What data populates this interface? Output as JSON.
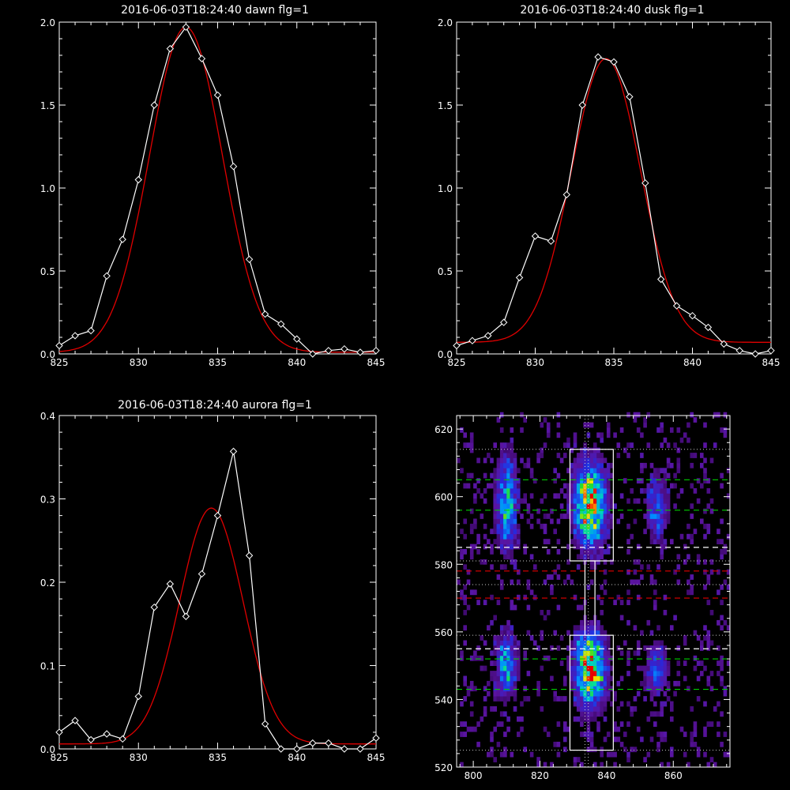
{
  "colors": {
    "background": "#000000",
    "data_line": "#ffffff",
    "fit_line": "#e00000",
    "dashed_green": "#00cc00",
    "dashed_red": "#e00000",
    "dashed_white": "#ffffff"
  },
  "chart_data": [
    {
      "type": "line",
      "title": "2016-06-03T18:24:40 dawn flg=1",
      "xlim": [
        825,
        845
      ],
      "ylim": [
        0,
        2.0
      ],
      "xticks": [
        "825",
        "830",
        "835",
        "840",
        "845"
      ],
      "yticks": [
        "0.0",
        "0.5",
        "1.0",
        "1.5",
        "2.0"
      ],
      "series": [
        {
          "role": "data",
          "x": [
            825,
            826,
            827,
            828,
            829,
            830,
            831,
            832,
            833,
            834,
            835,
            836,
            837,
            838,
            839,
            840,
            841,
            842,
            843,
            844,
            845
          ],
          "y": [
            0.05,
            0.11,
            0.14,
            0.47,
            0.69,
            1.05,
            1.5,
            1.84,
            1.97,
            1.78,
            1.56,
            1.13,
            0.57,
            0.24,
            0.18,
            0.09,
            0.0,
            0.02,
            0.03,
            0.01,
            0.02
          ]
        },
        {
          "role": "fit",
          "gaussian": {
            "amp": 1.96,
            "center": 833.0,
            "sigma": 2.3,
            "offset": 0.01
          }
        }
      ]
    },
    {
      "type": "line",
      "title": "2016-06-03T18:24:40 dusk flg=1",
      "xlim": [
        825,
        845
      ],
      "ylim": [
        0,
        2.0
      ],
      "xticks": [
        "825",
        "830",
        "835",
        "840",
        "845"
      ],
      "yticks": [
        "0.0",
        "0.5",
        "1.0",
        "1.5",
        "2.0"
      ],
      "series": [
        {
          "role": "data",
          "x": [
            825,
            826,
            827,
            828,
            829,
            830,
            831,
            832,
            833,
            834,
            835,
            836,
            837,
            838,
            839,
            840,
            841,
            842,
            843,
            844,
            845
          ],
          "y": [
            0.05,
            0.08,
            0.11,
            0.19,
            0.46,
            0.71,
            0.68,
            0.96,
            1.5,
            1.79,
            1.76,
            1.55,
            1.03,
            0.45,
            0.29,
            0.23,
            0.16,
            0.06,
            0.02,
            0.0,
            0.02
          ]
        },
        {
          "role": "fit",
          "gaussian": {
            "amp": 1.71,
            "center": 834.5,
            "sigma": 2.2,
            "offset": 0.07
          }
        }
      ]
    },
    {
      "type": "line",
      "title": "2016-06-03T18:24:40 aurora flg=1",
      "xlim": [
        825,
        845
      ],
      "ylim": [
        0,
        0.4
      ],
      "xticks": [
        "825",
        "830",
        "835",
        "840",
        "845"
      ],
      "yticks": [
        "0.0",
        "0.1",
        "0.2",
        "0.3",
        "0.4"
      ],
      "series": [
        {
          "role": "data",
          "x": [
            825,
            826,
            827,
            828,
            829,
            830,
            831,
            832,
            833,
            834,
            835,
            836,
            837,
            838,
            839,
            840,
            841,
            842,
            843,
            844,
            845
          ],
          "y": [
            0.02,
            0.034,
            0.011,
            0.018,
            0.012,
            0.063,
            0.17,
            0.198,
            0.159,
            0.21,
            0.28,
            0.357,
            0.232,
            0.03,
            0.0,
            0.0,
            0.007,
            0.007,
            0.0,
            0.0,
            0.013
          ]
        },
        {
          "role": "fit",
          "gaussian": {
            "amp": 0.283,
            "center": 834.6,
            "sigma": 2.0,
            "offset": 0.006
          }
        }
      ]
    },
    {
      "type": "heatmap",
      "xlim": [
        795,
        877
      ],
      "ylim": [
        520,
        624
      ],
      "xticks": [
        "800",
        "820",
        "840",
        "860"
      ],
      "yticks": [
        "520",
        "540",
        "560",
        "580",
        "600",
        "620"
      ],
      "colormap": "rainbow-on-black",
      "blobs": [
        {
          "x": 810,
          "y": 598,
          "sx": 2.0,
          "sy": 9,
          "amp": 0.55
        },
        {
          "x": 810,
          "y": 550,
          "sx": 2.0,
          "sy": 6,
          "amp": 0.5
        },
        {
          "x": 835,
          "y": 598,
          "sx": 3.0,
          "sy": 8,
          "amp": 0.95
        },
        {
          "x": 835,
          "y": 549,
          "sx": 3.0,
          "sy": 7,
          "amp": 0.95
        },
        {
          "x": 855,
          "y": 597,
          "sx": 2.2,
          "sy": 6,
          "amp": 0.35
        },
        {
          "x": 855,
          "y": 549,
          "sx": 2.2,
          "sy": 5,
          "amp": 0.35
        }
      ],
      "boxes": [
        {
          "x0": 829,
          "x1": 842,
          "y0": 581,
          "y1": 614
        },
        {
          "x0": 829,
          "x1": 842,
          "y0": 525,
          "y1": 559
        },
        {
          "x0": 833.5,
          "x1": 836.5,
          "y0": 559,
          "y1": 581
        }
      ],
      "dotted_h": [
        614,
        581,
        574,
        559,
        525
      ],
      "dotted_v": [
        833.5,
        834.5
      ],
      "dashed_h": [
        {
          "y": 605,
          "color": "green"
        },
        {
          "y": 596,
          "color": "green"
        },
        {
          "y": 585,
          "color": "white"
        },
        {
          "y": 578,
          "color": "red"
        },
        {
          "y": 570,
          "color": "red"
        },
        {
          "y": 555,
          "color": "white"
        },
        {
          "y": 552,
          "color": "green"
        },
        {
          "y": 543,
          "color": "green"
        }
      ]
    }
  ]
}
